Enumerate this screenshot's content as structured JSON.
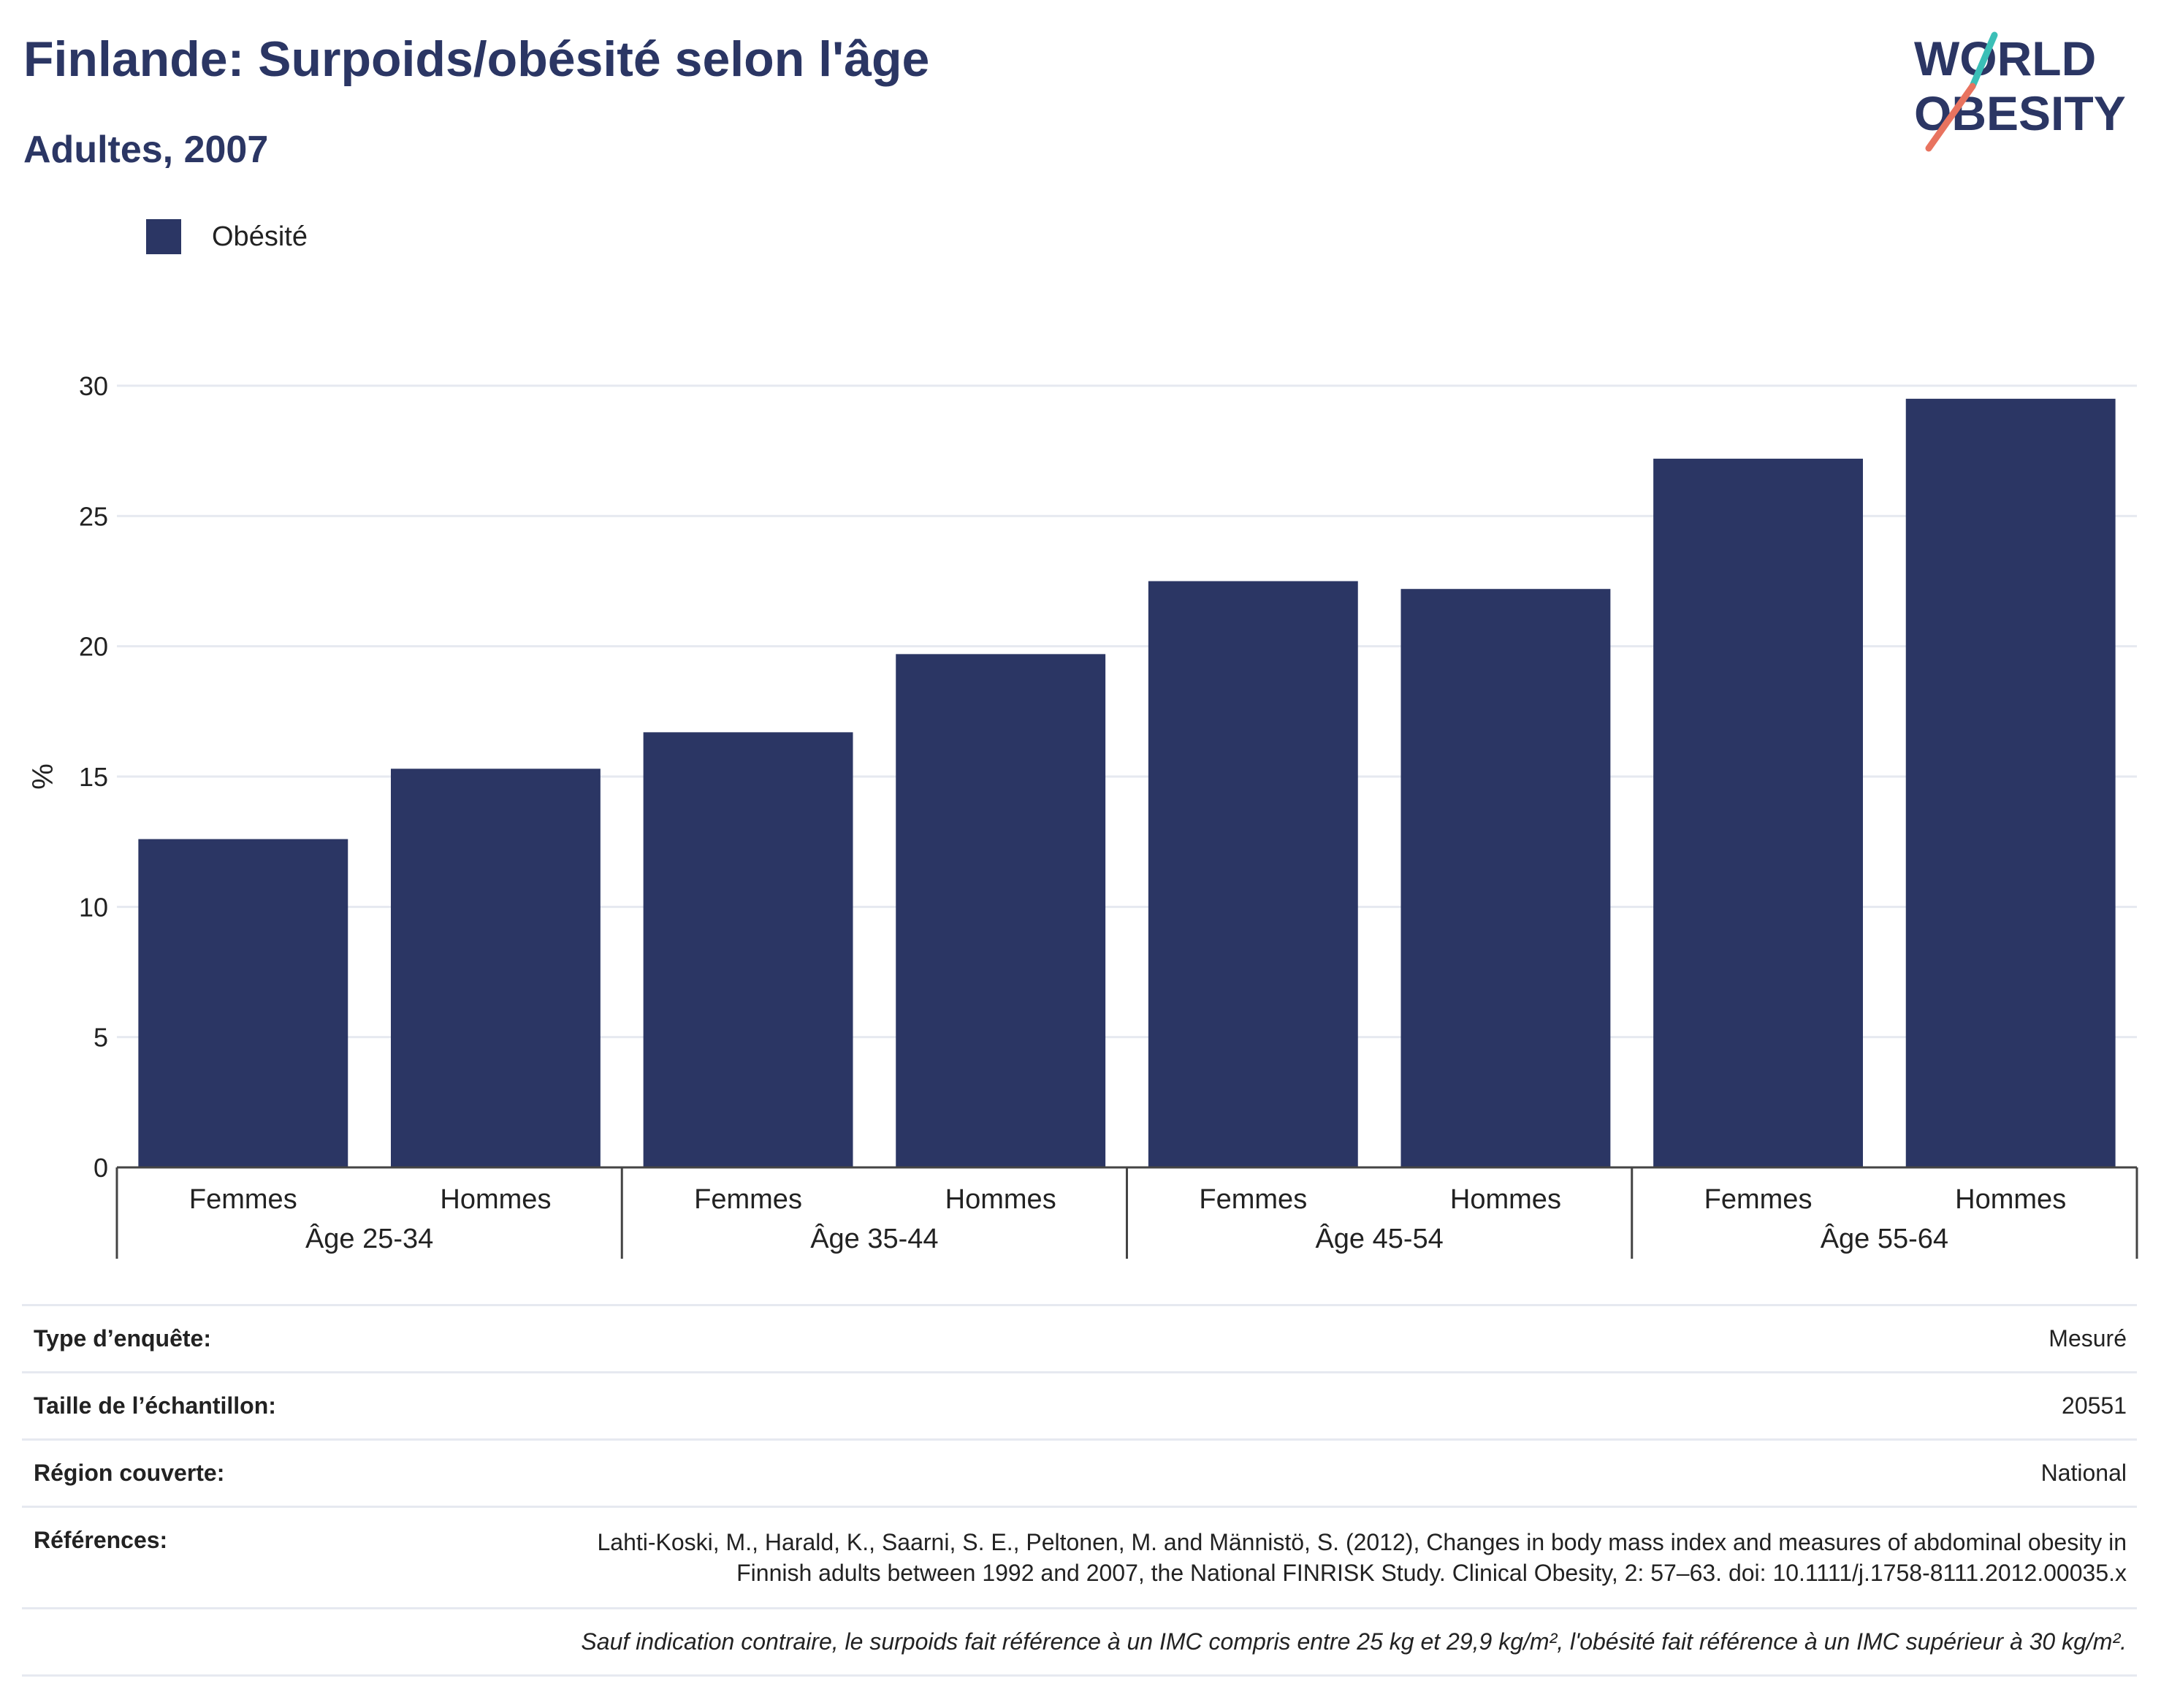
{
  "header": {
    "title": "Finlande: Surpoids/obésité selon l'âge",
    "subtitle": "Adultes, 2007"
  },
  "logo": {
    "line1": "WORLD",
    "line2": "OBESITY"
  },
  "colors": {
    "bar": "#2b3664",
    "title": "#2b3664",
    "accent_teal": "#3bbfb7",
    "accent_coral": "#e8735f",
    "grid": "#e6e9f0"
  },
  "chart_data": {
    "type": "bar",
    "ylabel": "%",
    "ylim": [
      0,
      30
    ],
    "yticks": [
      0,
      5,
      10,
      15,
      20,
      25,
      30
    ],
    "grid": true,
    "legend_position": "top-left",
    "groups": [
      "Âge 25-34",
      "Âge 35-44",
      "Âge 45-54",
      "Âge 55-64"
    ],
    "categories": [
      "Femmes",
      "Hommes",
      "Femmes",
      "Hommes",
      "Femmes",
      "Hommes",
      "Femmes",
      "Hommes"
    ],
    "series": [
      {
        "name": "Obésité",
        "values": [
          12.6,
          15.3,
          16.7,
          19.7,
          22.5,
          22.2,
          27.2,
          29.5
        ]
      }
    ]
  },
  "info": {
    "rows": [
      {
        "key": "Type d’enquête:",
        "value": "Mesuré"
      },
      {
        "key": "Taille de l’échantillon:",
        "value": "20551"
      },
      {
        "key": "Région couverte:",
        "value": "National"
      },
      {
        "key": "Références:",
        "value": "Lahti-Koski, M., Harald, K., Saarni, S. E., Peltonen, M. and Männistö, S. (2012), Changes in body mass index and measures of abdominal obesity in Finnish adults between 1992 and 2007, the National FINRISK Study. Clinical Obesity, 2: 57–63. doi: 10.1111/j.1758-8111.2012.00035.x"
      }
    ],
    "note": "Sauf indication contraire, le surpoids fait référence à un IMC compris entre 25 kg et 29,9 kg/m², l'obésité fait référence à un IMC supérieur à 30 kg/m²."
  }
}
